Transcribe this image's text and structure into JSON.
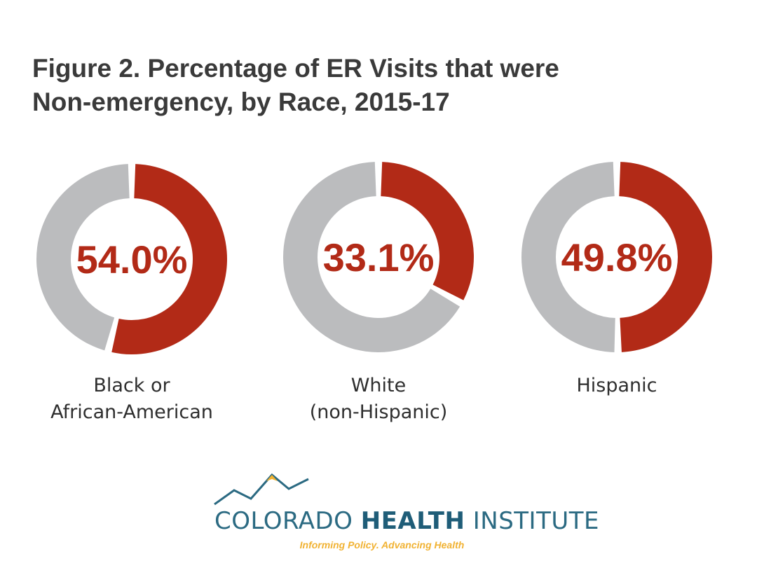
{
  "chart_data": {
    "type": "pie",
    "title_lines": [
      "Figure 2. Percentage of ER Visits that were",
      "Non-emergency, by Race, 2015-17"
    ],
    "charts": [
      {
        "value": 54.0,
        "label_text": "54.0%",
        "category_lines": [
          "Black or",
          "African-American"
        ]
      },
      {
        "value": 33.1,
        "label_text": "33.1%",
        "category_lines": [
          "White",
          "(non-Hispanic)"
        ]
      },
      {
        "value": 49.8,
        "label_text": "49.8%",
        "category_lines": [
          "Hispanic"
        ]
      }
    ],
    "colors": {
      "highlight": "#b22a17",
      "remainder": "#bbbcbe"
    }
  },
  "logo": {
    "name_regular_1": "COLORADO ",
    "name_bold": "HEALTH",
    "name_regular_2": " INSTITUTE",
    "tagline": "Informing Policy. Advancing Health",
    "colors": {
      "primary": "#2b6a82",
      "accent": "#f1b232"
    }
  }
}
